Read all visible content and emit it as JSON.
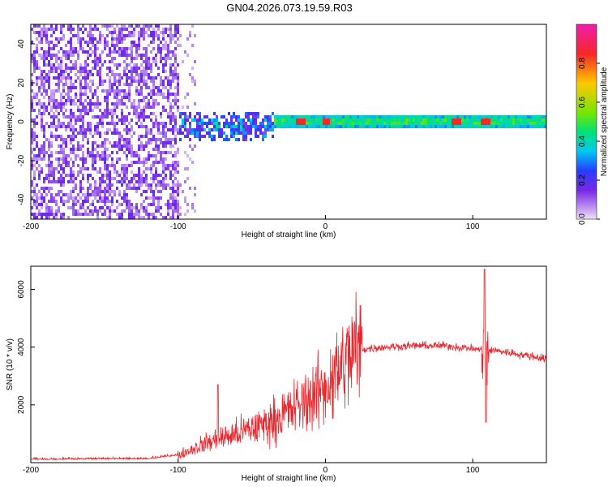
{
  "title": "GN04.2026.073.19.59.R03",
  "chart_data": [
    {
      "type": "heatmap",
      "name": "spectrogram",
      "xlabel": "Height of straight line (km)",
      "ylabel": "Frequency (Hz)",
      "xlim": [
        -200,
        150
      ],
      "ylim": [
        -50,
        50
      ],
      "xticks": [
        -200,
        -100,
        0,
        100
      ],
      "yticks": [
        -40,
        -20,
        0,
        20,
        40
      ],
      "colorbar": {
        "label": "Normalized spectral amplitude",
        "range": [
          0,
          1
        ],
        "ticks": [
          "0.0",
          "0.2",
          "0.4",
          "0.6",
          "0.8"
        ]
      },
      "regions": [
        {
          "from": -200,
          "to": -100,
          "description_level": "noise",
          "amplitude": [
            0.05,
            0.25
          ]
        },
        {
          "from": -100,
          "to": -90,
          "description_level": "sparse noise",
          "amplitude": [
            0.02,
            0.12
          ]
        },
        {
          "from": -100,
          "to": -35,
          "center_hz": -2,
          "spread_hz": 8,
          "amplitude": [
            0.2,
            0.45
          ]
        },
        {
          "from": -35,
          "to": 150,
          "center_hz": 1,
          "spread_hz": 2.5,
          "amplitude": [
            0.35,
            0.55
          ]
        }
      ],
      "peaks_km": [
        -18,
        0,
        88,
        108
      ]
    },
    {
      "type": "line",
      "name": "snr",
      "xlabel": "Height of straight line (km)",
      "ylabel": "SNR (10 * v/v)",
      "xlim": [
        -200,
        150
      ],
      "ylim": [
        0,
        6800
      ],
      "xticks": [
        -200,
        -100,
        0,
        100
      ],
      "yticks": [
        2000,
        4000,
        6000
      ],
      "color": "#e8262c",
      "envelope": {
        "x": [
          -200,
          -120,
          -100,
          -80,
          -60,
          -40,
          -20,
          0,
          20,
          40,
          60,
          80,
          100,
          106,
          108,
          110,
          112,
          120,
          150
        ],
        "y": [
          100,
          120,
          250,
          700,
          1000,
          1350,
          1900,
          2600,
          3900,
          4000,
          4050,
          4050,
          3950,
          3900,
          3800,
          3850,
          3900,
          3850,
          3600
        ]
      },
      "spikes": [
        {
          "x": -73,
          "y": 2700
        },
        {
          "x": 108,
          "y": 6700
        },
        {
          "x": 109,
          "y": 1400
        }
      ]
    }
  ]
}
